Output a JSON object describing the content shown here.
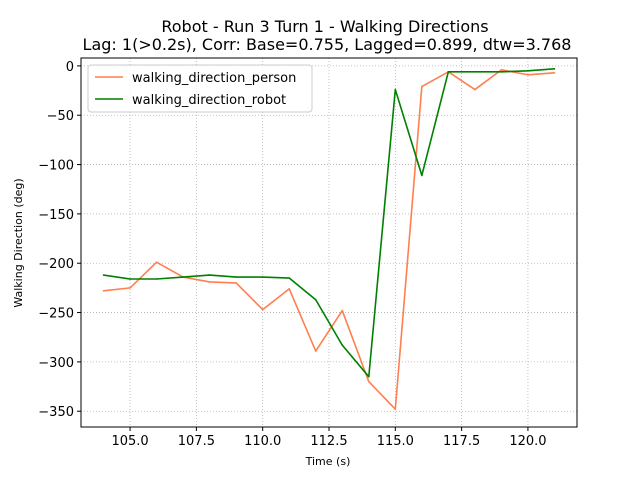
{
  "chart_data": {
    "type": "line",
    "title": "Robot - Run 3 Turn 1 - Walking Directions",
    "subtitle": "Lag: 1(>0.2s), Corr: Base=0.755, Lagged=0.899, dtw=3.768",
    "xlabel": "Time (s)",
    "ylabel": "Walking Direction (deg)",
    "xlim": [
      103.15,
      121.85
    ],
    "ylim": [
      -366,
      8
    ],
    "xticks": [
      105.0,
      107.5,
      110.0,
      112.5,
      115.0,
      117.5,
      120.0
    ],
    "xtick_labels": [
      "105.0",
      "107.5",
      "110.0",
      "112.5",
      "115.0",
      "117.5",
      "120.0"
    ],
    "yticks": [
      0,
      -50,
      -100,
      -150,
      -200,
      -250,
      -300,
      -350
    ],
    "ytick_labels": [
      "0",
      "−50",
      "−100",
      "−150",
      "−200",
      "−250",
      "−300",
      "−350"
    ],
    "grid": true,
    "legend_position": "top-left",
    "x": [
      104,
      105,
      106,
      107,
      108,
      109,
      110,
      111,
      112,
      113,
      114,
      115,
      116,
      117,
      118,
      119,
      120,
      121
    ],
    "series": [
      {
        "name": "walking_direction_person",
        "color": "#ff7f50",
        "values": [
          -228,
          -225,
          -199,
          -214,
          -219,
          -220,
          -247,
          -226,
          -289,
          -248,
          -320,
          -348,
          -21,
          -6,
          -24,
          -4,
          -9,
          -7
        ]
      },
      {
        "name": "walking_direction_robot",
        "color": "#008000",
        "values": [
          -212,
          -216,
          -216,
          -214,
          -212,
          -214,
          -214,
          -215,
          -237,
          -283,
          -315,
          -24,
          -111,
          -6,
          -6,
          -6,
          -5,
          -3
        ]
      }
    ]
  }
}
